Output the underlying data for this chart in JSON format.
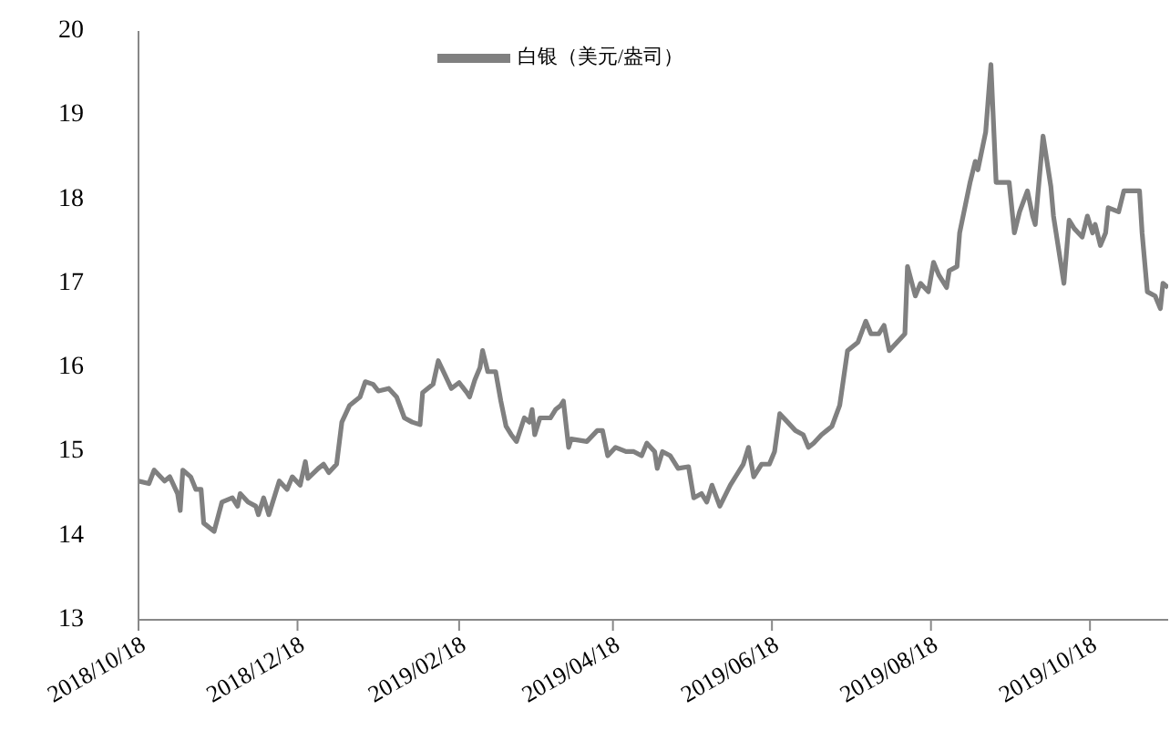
{
  "chart_data": {
    "type": "line",
    "legend": "top",
    "xlim": [
      "2018-10-18",
      "2019-11-17"
    ],
    "xticks": [
      {
        "value": "2018-10-18",
        "label": "2018/10/18"
      },
      {
        "value": "2018-12-18",
        "label": "2018/12/18"
      },
      {
        "value": "2019-02-18",
        "label": "2019/02/18"
      },
      {
        "value": "2019-04-18",
        "label": "2019/04/18"
      },
      {
        "value": "2019-06-18",
        "label": "2019/06/18"
      },
      {
        "value": "2019-08-18",
        "label": "2019/08/18"
      },
      {
        "value": "2019-10-18",
        "label": "2019/10/18"
      }
    ],
    "ylim": [
      13,
      20
    ],
    "yticks": [
      13,
      14,
      15,
      16,
      17,
      18,
      19,
      20
    ],
    "grid": false,
    "marker": "none",
    "line_style": "solid",
    "x": [
      "2018-10-18",
      "2018-10-22",
      "2018-10-24",
      "2018-10-28",
      "2018-10-30",
      "2018-11-02",
      "2018-11-03",
      "2018-11-04",
      "2018-11-07",
      "2018-11-09",
      "2018-11-11",
      "2018-11-12",
      "2018-11-16",
      "2018-11-19",
      "2018-11-23",
      "2018-11-25",
      "2018-11-26",
      "2018-11-29",
      "2018-12-02",
      "2018-12-03",
      "2018-12-05",
      "2018-12-07",
      "2018-12-11",
      "2018-12-14",
      "2018-12-16",
      "2018-12-19",
      "2018-12-21",
      "2018-12-22",
      "2018-12-26",
      "2018-12-28",
      "2018-12-30",
      "2019-01-02",
      "2019-01-04",
      "2019-01-07",
      "2019-01-11",
      "2019-01-13",
      "2019-01-16",
      "2019-01-18",
      "2019-01-22",
      "2019-01-25",
      "2019-01-28",
      "2019-01-31",
      "2019-02-03",
      "2019-02-04",
      "2019-02-08",
      "2019-02-10",
      "2019-02-12",
      "2019-02-15",
      "2019-02-18",
      "2019-02-21",
      "2019-02-22",
      "2019-02-24",
      "2019-02-26",
      "2019-02-27",
      "2019-03-01",
      "2019-03-04",
      "2019-03-06",
      "2019-03-08",
      "2019-03-10",
      "2019-03-12",
      "2019-03-15",
      "2019-03-17",
      "2019-03-18",
      "2019-03-19",
      "2019-03-21",
      "2019-03-25",
      "2019-03-27",
      "2019-03-29",
      "2019-03-30",
      "2019-04-01",
      "2019-04-02",
      "2019-04-08",
      "2019-04-12",
      "2019-04-14",
      "2019-04-16",
      "2019-04-19",
      "2019-04-23",
      "2019-04-26",
      "2019-04-29",
      "2019-05-01",
      "2019-05-04",
      "2019-05-05",
      "2019-05-07",
      "2019-05-10",
      "2019-05-13",
      "2019-05-17",
      "2019-05-19",
      "2019-05-22",
      "2019-05-24",
      "2019-05-26",
      "2019-05-29",
      "2019-06-02",
      "2019-06-05",
      "2019-06-07",
      "2019-06-09",
      "2019-06-11",
      "2019-06-14",
      "2019-06-17",
      "2019-06-19",
      "2019-06-21",
      "2019-06-24",
      "2019-06-27",
      "2019-06-30",
      "2019-07-02",
      "2019-07-04",
      "2019-07-07",
      "2019-07-09",
      "2019-07-11",
      "2019-07-14",
      "2019-07-17",
      "2019-07-21",
      "2019-07-24",
      "2019-07-26",
      "2019-07-29",
      "2019-07-31",
      "2019-08-02",
      "2019-08-05",
      "2019-08-08",
      "2019-08-09",
      "2019-08-12",
      "2019-08-14",
      "2019-08-17",
      "2019-08-19",
      "2019-08-21",
      "2019-08-24",
      "2019-08-25",
      "2019-08-28",
      "2019-08-29",
      "2019-09-02",
      "2019-09-04",
      "2019-09-05",
      "2019-09-08",
      "2019-09-10",
      "2019-09-12",
      "2019-09-17",
      "2019-09-19",
      "2019-09-21",
      "2019-09-24",
      "2019-09-26",
      "2019-09-27",
      "2019-09-30",
      "2019-10-03",
      "2019-10-04",
      "2019-10-08",
      "2019-10-10",
      "2019-10-12",
      "2019-10-15",
      "2019-10-17",
      "2019-10-19",
      "2019-10-20",
      "2019-10-22",
      "2019-10-24",
      "2019-10-25",
      "2019-10-29",
      "2019-10-31",
      "2019-11-06",
      "2019-11-07",
      "2019-11-09",
      "2019-11-12",
      "2019-11-14",
      "2019-11-15",
      "2019-11-17"
    ],
    "series": [
      {
        "name": "白银（美元/盎司）",
        "color": "#808080",
        "values": [
          14.65,
          14.62,
          14.78,
          14.65,
          14.7,
          14.5,
          14.3,
          14.78,
          14.7,
          14.55,
          14.55,
          14.15,
          14.05,
          14.4,
          14.45,
          14.35,
          14.5,
          14.4,
          14.35,
          14.25,
          14.45,
          14.25,
          14.65,
          14.55,
          14.7,
          14.6,
          14.88,
          14.68,
          14.8,
          14.85,
          14.75,
          14.85,
          15.35,
          15.55,
          15.65,
          15.83,
          15.8,
          15.72,
          15.75,
          15.65,
          15.4,
          15.35,
          15.32,
          15.7,
          15.8,
          16.08,
          15.95,
          15.75,
          15.82,
          15.7,
          15.65,
          15.85,
          16.0,
          16.2,
          15.95,
          15.95,
          15.6,
          15.3,
          15.2,
          15.12,
          15.4,
          15.35,
          15.5,
          15.2,
          15.4,
          15.4,
          15.5,
          15.55,
          15.6,
          15.05,
          15.15,
          15.12,
          15.25,
          15.25,
          14.95,
          15.05,
          15.0,
          15.0,
          14.95,
          15.1,
          15.0,
          14.8,
          15.0,
          14.95,
          14.8,
          14.82,
          14.45,
          14.5,
          14.4,
          14.6,
          14.35,
          14.6,
          14.75,
          14.85,
          15.05,
          14.7,
          14.85,
          14.85,
          15.0,
          15.45,
          15.35,
          15.25,
          15.2,
          15.05,
          15.1,
          15.2,
          15.25,
          15.3,
          15.55,
          16.2,
          16.3,
          16.55,
          16.4,
          16.4,
          16.5,
          16.2,
          16.3,
          16.4,
          17.2,
          16.85,
          17.0,
          16.9,
          17.25,
          17.1,
          16.95,
          17.15,
          17.2,
          17.6,
          18.2,
          18.45,
          18.35,
          18.8,
          19.6,
          18.2,
          18.2,
          17.6,
          17.85,
          18.1,
          17.8,
          17.7,
          18.75,
          18.15,
          17.8,
          17.0,
          17.75,
          17.65,
          17.55,
          17.8,
          17.6,
          17.7,
          17.45,
          17.6,
          17.9,
          17.85,
          18.1,
          18.1,
          17.6,
          16.9,
          16.85,
          16.7,
          17.0,
          16.95
        ]
      }
    ]
  }
}
